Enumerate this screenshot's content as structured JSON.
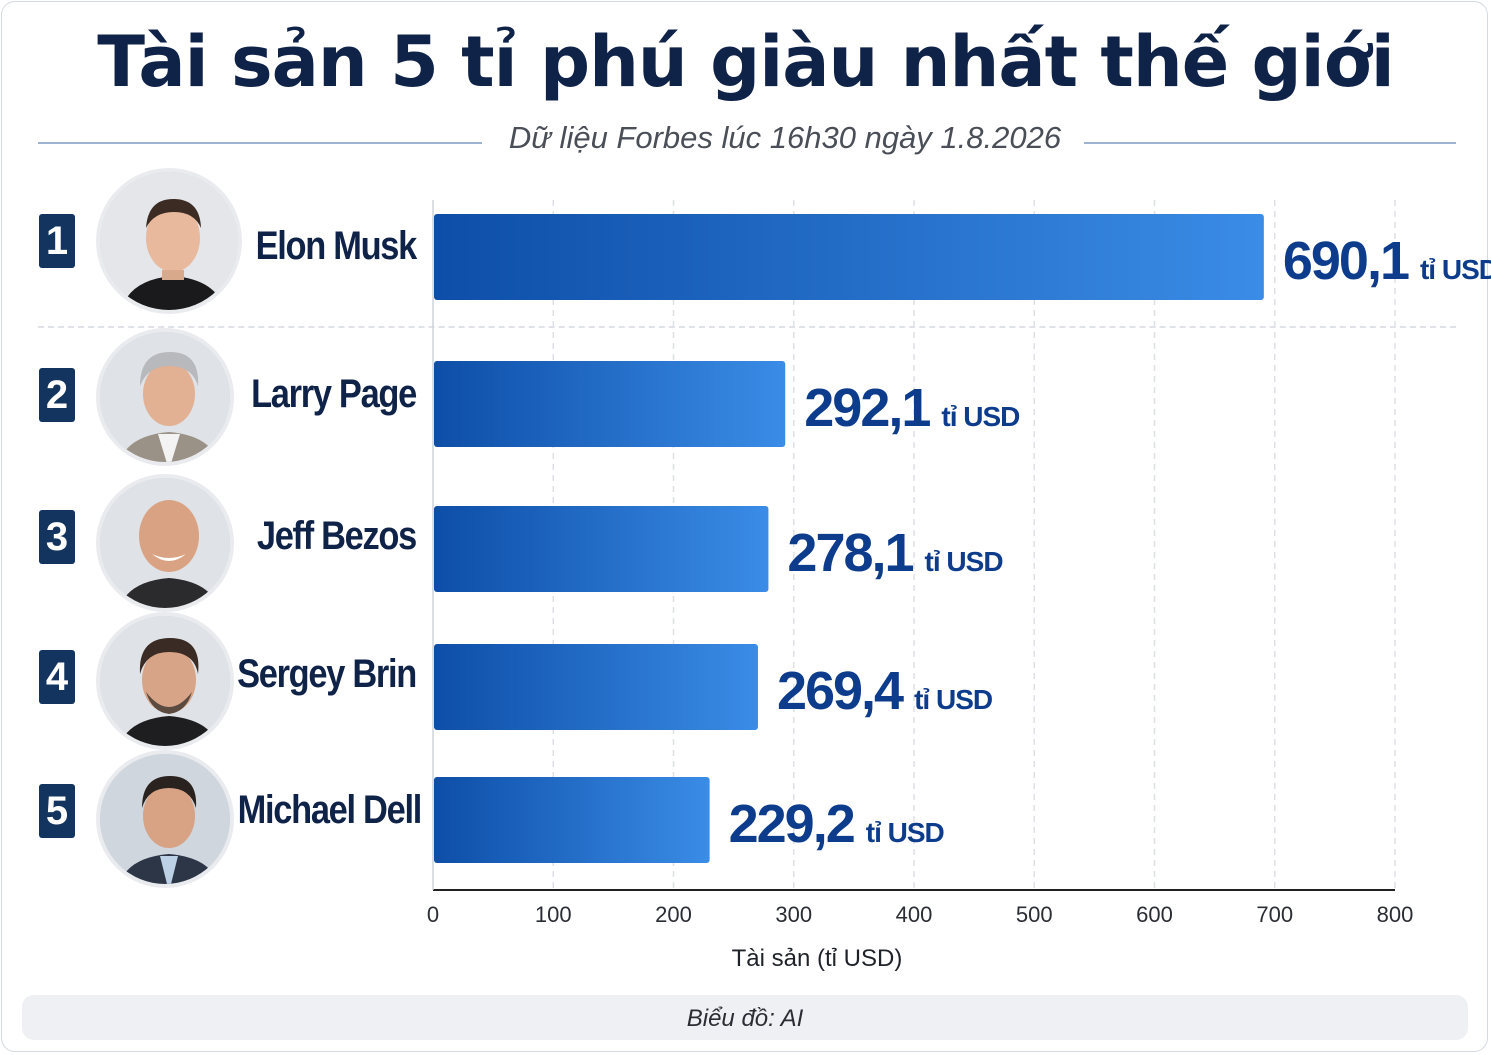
{
  "header": {
    "title": "Tài sản 5 tỉ phú giàu nhất thế giới",
    "subtitle": "Dữ liệu Forbes lúc 16h30 ngày 1.8.2026"
  },
  "footer": {
    "credit": "Biểu đồ: AI"
  },
  "colors": {
    "bar_start": "#0d4ea8",
    "bar_end": "#3a8ce6",
    "navy": "#0f2248",
    "value_text": "#0d3c8c"
  },
  "chart_data": {
    "type": "bar",
    "orientation": "horizontal",
    "title": "Tài sản 5 tỉ phú giàu nhất thế giới",
    "subtitle": "Dữ liệu Forbes lúc 16h30 ngày 1.8.2026",
    "xlabel": "Tài sản (tỉ USD)",
    "ylabel": "",
    "xlim": [
      0,
      800
    ],
    "xticks": [
      0,
      100,
      200,
      300,
      400,
      500,
      600,
      700,
      800
    ],
    "grid": true,
    "value_unit": "tỉ USD",
    "categories": [
      "Elon Musk",
      "Larry Page",
      "Jeff Bezos",
      "Sergey Brin",
      "Michael Dell"
    ],
    "ranks": [
      "1",
      "2",
      "3",
      "4",
      "5"
    ],
    "values": [
      690.1,
      292.1,
      278.1,
      269.4,
      229.2
    ],
    "value_labels": [
      "690,1",
      "292,1",
      "278,1",
      "269,4",
      "229,2"
    ]
  }
}
